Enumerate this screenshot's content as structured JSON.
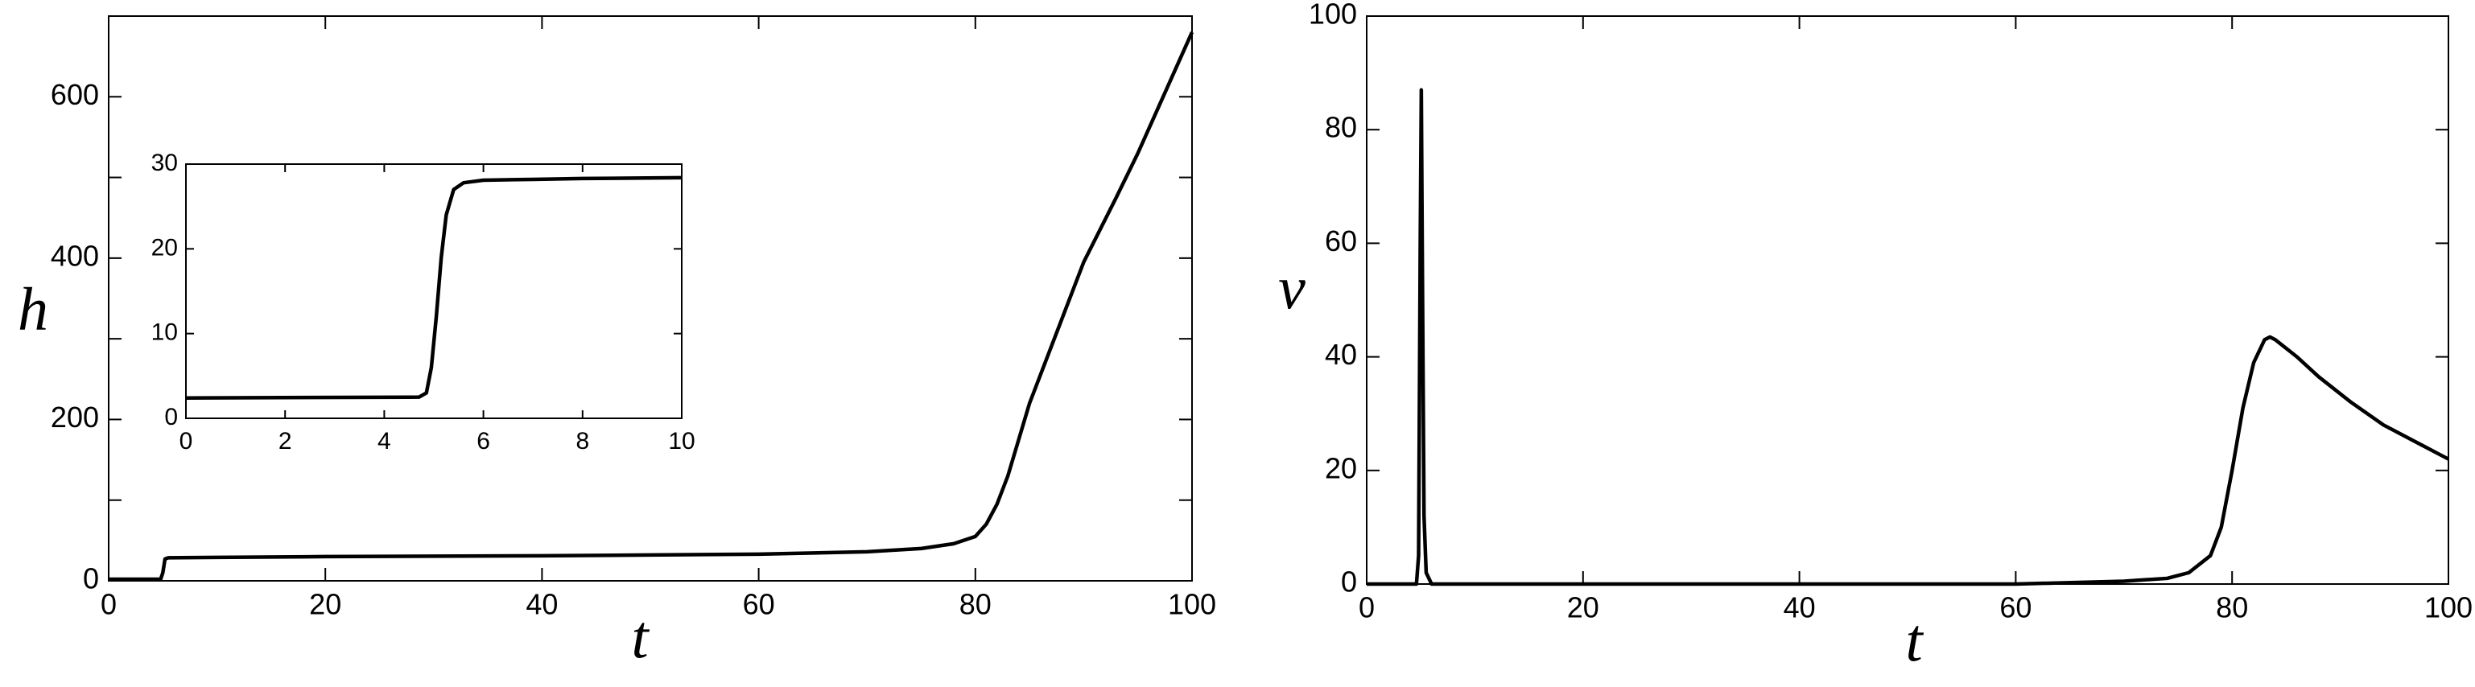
{
  "chart_data": [
    {
      "type": "line",
      "xlabel": "t",
      "ylabel": "h",
      "x": [
        0,
        4.8,
        5.0,
        5.2,
        5.5,
        10,
        20,
        30,
        40,
        50,
        60,
        70,
        75,
        78,
        80,
        81,
        82,
        83,
        84,
        85,
        87,
        90,
        93,
        95,
        97,
        100
      ],
      "series": [
        {
          "color": "#000000",
          "values": [
            2,
            2,
            10,
            27,
            28.5,
            29,
            30,
            30.5,
            31,
            32,
            33,
            36,
            40,
            46,
            55,
            70,
            95,
            130,
            175,
            220,
            290,
            395,
            475,
            530,
            590,
            680
          ]
        }
      ],
      "xlim": [
        0,
        100
      ],
      "ylim": [
        0,
        700
      ],
      "xticks": [
        0,
        20,
        40,
        60,
        80,
        100
      ],
      "yticks": [
        0,
        200,
        400,
        600
      ],
      "yminorticks": [
        100,
        300,
        500
      ]
    },
    {
      "type": "line",
      "x": [
        0,
        4.7,
        4.85,
        4.95,
        5.05,
        5.15,
        5.25,
        5.4,
        5.6,
        6,
        7,
        8,
        10
      ],
      "series": [
        {
          "color": "#000000",
          "values": [
            2.4,
            2.5,
            3,
            6,
            12,
            19,
            24,
            27,
            27.8,
            28.1,
            28.2,
            28.3,
            28.4
          ]
        }
      ],
      "xlim": [
        0,
        10
      ],
      "ylim": [
        0,
        30
      ],
      "xticks": [
        0,
        2,
        4,
        6,
        8,
        10
      ],
      "yticks": [
        0,
        10,
        20,
        30
      ]
    },
    {
      "type": "line",
      "xlabel": "t",
      "ylabel": "v",
      "x": [
        0,
        4.6,
        4.8,
        4.95,
        5.05,
        5.15,
        5.3,
        5.5,
        6,
        20,
        40,
        60,
        70,
        74,
        76,
        78,
        79,
        80,
        81,
        82,
        83,
        83.5,
        84,
        85,
        86,
        88,
        91,
        94,
        97,
        100
      ],
      "series": [
        {
          "color": "#000000",
          "values": [
            0,
            0,
            5,
            60,
            87,
            55,
            12,
            2,
            0,
            0,
            0,
            0,
            0.5,
            1,
            2,
            5,
            10,
            20,
            31,
            39,
            43,
            43.5,
            43,
            41.5,
            40,
            36.5,
            32,
            28,
            25,
            22
          ]
        }
      ],
      "xlim": [
        0,
        100
      ],
      "ylim": [
        0,
        100
      ],
      "xticks": [
        0,
        20,
        40,
        60,
        80,
        100
      ],
      "yticks": [
        0,
        20,
        40,
        60,
        80,
        100
      ]
    }
  ]
}
